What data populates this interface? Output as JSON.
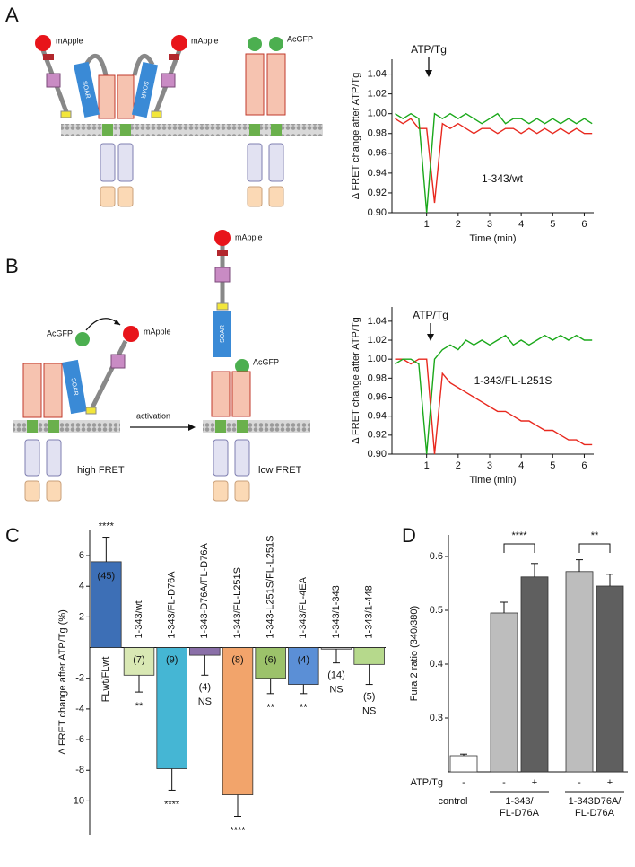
{
  "panel_labels": [
    "A",
    "B",
    "C",
    "D"
  ],
  "diagrams": {
    "a": [
      "mApple",
      "mApple",
      "AcGFP",
      "SOAR",
      "SOAR"
    ],
    "b": [
      "AcGFP",
      "mApple",
      "SOAR",
      "activation",
      "high FRET",
      "mApple",
      "SOAR",
      "AcGFP",
      "low FRET"
    ]
  },
  "chart_data": [
    {
      "type": "line",
      "xlabel": "Time (min)",
      "ylabel": "Δ FRET change after ATP/Tg",
      "annotations": [
        "ATP/Tg",
        "1-343/wt"
      ],
      "x": [
        0,
        0.25,
        0.5,
        0.75,
        1,
        1.25,
        1.5,
        1.75,
        2,
        2.25,
        2.5,
        2.75,
        3,
        3.25,
        3.5,
        3.75,
        4,
        4.25,
        4.5,
        4.75,
        5,
        5.25,
        5.5,
        5.75,
        6,
        6.25
      ],
      "series": [
        {
          "color": "#e8281e",
          "values": [
            0.995,
            0.99,
            0.995,
            0.985,
            0.985,
            0.91,
            0.99,
            0.985,
            0.99,
            0.985,
            0.98,
            0.985,
            0.985,
            0.98,
            0.985,
            0.985,
            0.98,
            0.985,
            0.98,
            0.985,
            0.98,
            0.985,
            0.98,
            0.985,
            0.98,
            0.98
          ]
        },
        {
          "color": "#1aa81a",
          "values": [
            1.0,
            0.995,
            1.0,
            0.995,
            0.9,
            1.0,
            0.995,
            1.0,
            0.995,
            1.0,
            0.995,
            0.99,
            0.995,
            1.0,
            0.99,
            0.995,
            0.995,
            0.99,
            0.995,
            0.99,
            0.995,
            0.99,
            0.995,
            0.99,
            0.995,
            0.99
          ]
        }
      ],
      "xlim": [
        -0.1,
        6.3
      ],
      "xticks": [
        1,
        2,
        3,
        4,
        5,
        6
      ],
      "ylim": [
        0.9,
        1.055
      ],
      "yticks": [
        {
          "value": 0.9,
          "label": "0.90"
        },
        0.92,
        0.94,
        0.96,
        0.98,
        {
          "value": 1,
          "label": "1.00"
        },
        1.02,
        1.04
      ]
    },
    {
      "type": "line",
      "xlabel": "Time (min)",
      "ylabel": "Δ FRET change after ATP/Tg",
      "annotations": [
        "ATP/Tg",
        "1-343/FL-L251S"
      ],
      "x": [
        0,
        0.25,
        0.5,
        0.75,
        1,
        1.25,
        1.5,
        1.75,
        2,
        2.25,
        2.5,
        2.75,
        3,
        3.25,
        3.5,
        3.75,
        4,
        4.25,
        4.5,
        4.75,
        5,
        5.25,
        5.5,
        5.75,
        6,
        6.25
      ],
      "series": [
        {
          "color": "#e8281e",
          "values": [
            1.0,
            1.0,
            0.995,
            1.0,
            1.0,
            0.9,
            0.985,
            0.975,
            0.97,
            0.965,
            0.96,
            0.955,
            0.95,
            0.945,
            0.945,
            0.94,
            0.935,
            0.935,
            0.93,
            0.925,
            0.925,
            0.92,
            0.915,
            0.915,
            0.91,
            0.91
          ]
        },
        {
          "color": "#1aa81a",
          "values": [
            0.995,
            1.0,
            1.0,
            0.995,
            0.9,
            1.0,
            1.01,
            1.015,
            1.01,
            1.02,
            1.015,
            1.02,
            1.015,
            1.02,
            1.025,
            1.015,
            1.02,
            1.015,
            1.02,
            1.025,
            1.02,
            1.025,
            1.02,
            1.025,
            1.02,
            1.02
          ]
        }
      ],
      "xlim": [
        -0.1,
        6.3
      ],
      "xticks": [
        1,
        2,
        3,
        4,
        5,
        6
      ],
      "ylim": [
        0.9,
        1.055
      ],
      "yticks": [
        {
          "value": 0.9,
          "label": "0.90"
        },
        0.92,
        0.94,
        0.96,
        0.98,
        {
          "value": 1,
          "label": "1.00"
        },
        1.02,
        1.04
      ]
    },
    {
      "type": "bar",
      "ylabel": "Δ FRET change after ATP/Tg (%)",
      "categories": [
        "FLwt/FLwt",
        "1-343/wt",
        "1-343/FL-D76A",
        "1-343-D76A/FL-D76A",
        "1-343/FL-L251S",
        "1-343-L251S/FL-L251S",
        "1-343/FL-4EA",
        "1-343/1-343",
        "1-343/1-448"
      ],
      "values": [
        5.6,
        -1.8,
        -7.9,
        -0.5,
        -9.6,
        -2.0,
        -2.4,
        -0.1,
        -1.1
      ],
      "errors": [
        1.6,
        1.1,
        1.4,
        1.3,
        1.4,
        1.0,
        0.6,
        0.9,
        1.3
      ],
      "colors": [
        "#3d6fb6",
        "#d9e8b4",
        "#45b6d4",
        "#8a6fa8",
        "#f2a46b",
        "#9cc26a",
        "#5b8fd6",
        "#cccccc",
        "#b6d98c"
      ],
      "n_labels": [
        "(45)",
        "(7)",
        "(9)",
        "(4)",
        "(8)",
        "(6)",
        "(4)",
        "(14)",
        "(5)"
      ],
      "significance": [
        "****",
        "**",
        "****",
        "NS",
        "****",
        "**",
        "**",
        "NS",
        "NS"
      ],
      "ylim": [
        -12.2,
        7.7
      ],
      "yticks": [
        6,
        4,
        2,
        -2,
        -4,
        -6,
        -8,
        -10
      ]
    },
    {
      "type": "bar",
      "ylabel": "Fura 2 ratio (340/380)",
      "categories": [
        "-",
        "-",
        "+",
        "-",
        "+"
      ],
      "row_label": "ATP/Tg",
      "group_labels": [
        [
          "control"
        ],
        [
          "1-343/",
          "FL-D76A"
        ],
        [
          "1-343D76A/",
          "FL-D76A"
        ]
      ],
      "values": [
        0.23,
        0.495,
        0.562,
        0.572,
        0.545
      ],
      "errors": [
        0.003,
        0.02,
        0.025,
        0.022,
        0.022
      ],
      "colors": [
        "#ffffff",
        "#bdbdbd",
        "#5f5f5f",
        "#bdbdbd",
        "#5f5f5f"
      ],
      "significance_labels": [
        "****",
        "**"
      ],
      "ylim": [
        0.2,
        0.64
      ],
      "yticks": [
        0.3,
        0.4,
        0.5,
        0.6
      ]
    }
  ]
}
